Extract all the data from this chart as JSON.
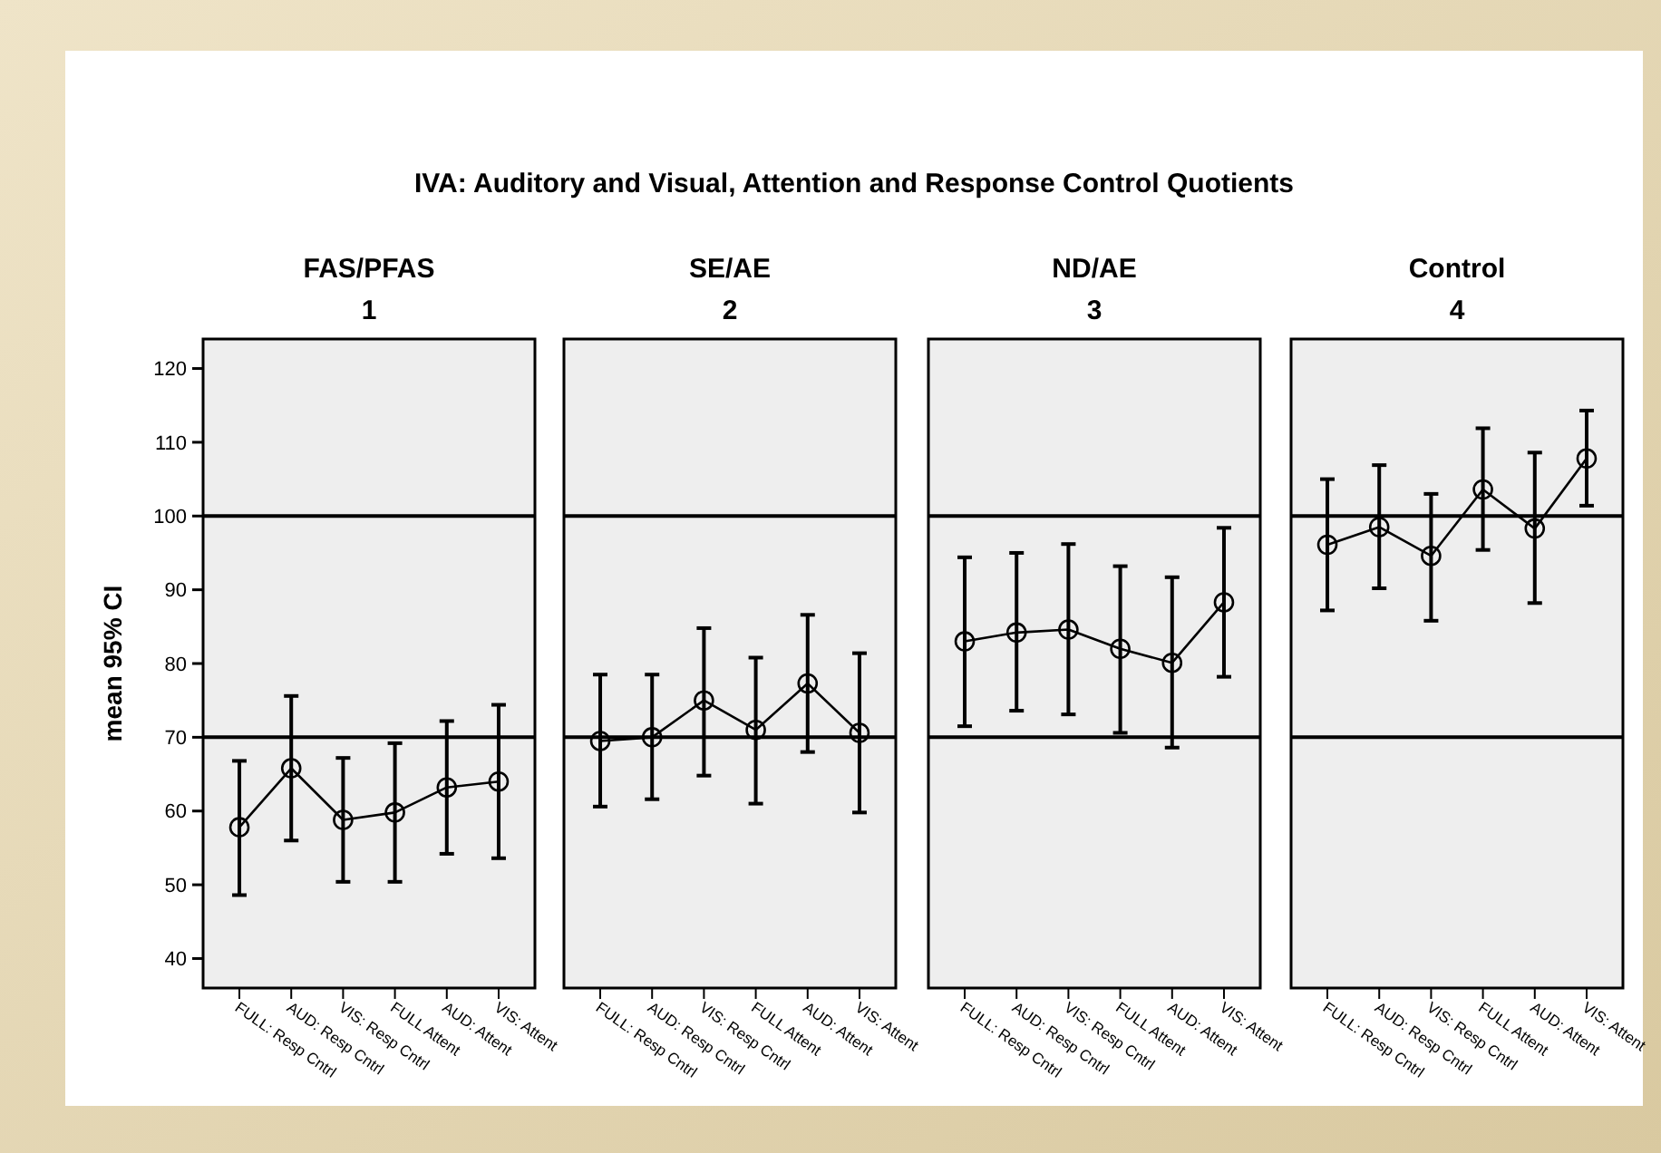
{
  "chart_data": [
    {
      "type": "line",
      "title": "FAS/PFAS",
      "subtitle": "1",
      "annotations": [
        "IVA: Auditory and Visual, Attention and Response Control Quotients"
      ],
      "ylabel": "mean 95% CI",
      "categories": [
        "FULL: Resp Cntrl",
        "AUD: Resp Cntrl",
        "VIS: Resp Cntrl",
        "FULL Attent",
        "AUD: Attent",
        "VIS: Attent"
      ],
      "series": [
        {
          "color": "#000000",
          "values": [
            57.8,
            65.8,
            58.8,
            59.8,
            63.2,
            64
          ],
          "errors": [
            [
              48.6,
              66.8
            ],
            [
              56,
              75.6
            ],
            [
              50.4,
              67.2
            ],
            [
              50.4,
              69.2
            ],
            [
              54.2,
              72.2
            ],
            [
              53.6,
              74.4
            ]
          ]
        }
      ],
      "ylim": [
        36,
        124
      ],
      "yticks": [
        40,
        50,
        60,
        70,
        80,
        90,
        100,
        110,
        120
      ],
      "ref_lines": [
        {
          "axis": "y",
          "value": 70,
          "color": "#000000"
        },
        {
          "axis": "y",
          "value": 100,
          "color": "#000000"
        }
      ],
      "marker": "circle",
      "grid": false
    },
    {
      "type": "line",
      "title": "SE/AE",
      "subtitle": "2",
      "categories": [
        "FULL: Resp Cntrl",
        "AUD: Resp Cntrl",
        "VIS: Resp Cntrl",
        "FULL Attent",
        "AUD: Attent",
        "VIS: Attent"
      ],
      "series": [
        {
          "color": "#000000",
          "values": [
            69.5,
            70,
            75,
            71,
            77.3,
            70.6
          ],
          "errors": [
            [
              60.6,
              78.5
            ],
            [
              61.6,
              78.5
            ],
            [
              64.8,
              84.8
            ],
            [
              61,
              80.8
            ],
            [
              68,
              86.6
            ],
            [
              59.8,
              81.4
            ]
          ]
        }
      ],
      "ylim": [
        36,
        124
      ],
      "tick_labels": "x",
      "ref_lines": [
        {
          "axis": "y",
          "value": 70,
          "color": "#000000"
        },
        {
          "axis": "y",
          "value": 100,
          "color": "#000000"
        }
      ],
      "marker": "circle",
      "grid": false
    },
    {
      "type": "line",
      "title": "ND/AE",
      "subtitle": "3",
      "categories": [
        "FULL: Resp Cntrl",
        "AUD: Resp Cntrl",
        "VIS: Resp Cntrl",
        "FULL Attent",
        "AUD: Attent",
        "VIS: Attent"
      ],
      "series": [
        {
          "color": "#000000",
          "values": [
            83,
            84.2,
            84.6,
            82,
            80.1,
            88.3
          ],
          "errors": [
            [
              71.5,
              94.4
            ],
            [
              73.6,
              95
            ],
            [
              73.1,
              96.2
            ],
            [
              70.6,
              93.2
            ],
            [
              68.6,
              91.7
            ],
            [
              78.2,
              98.4
            ]
          ]
        }
      ],
      "ylim": [
        36,
        124
      ],
      "tick_labels": "x",
      "ref_lines": [
        {
          "axis": "y",
          "value": 70,
          "color": "#000000"
        },
        {
          "axis": "y",
          "value": 100,
          "color": "#000000"
        }
      ],
      "marker": "circle",
      "grid": false
    },
    {
      "type": "line",
      "title": "Control",
      "subtitle": "4",
      "categories": [
        "FULL: Resp Cntrl",
        "AUD: Resp Cntrl",
        "VIS: Resp Cntrl",
        "FULL Attent",
        "AUD: Attent",
        "VIS: Attent"
      ],
      "series": [
        {
          "color": "#000000",
          "values": [
            96.1,
            98.5,
            94.6,
            103.6,
            98.3,
            107.8
          ],
          "errors": [
            [
              87.2,
              105
            ],
            [
              90.2,
              106.9
            ],
            [
              85.8,
              103
            ],
            [
              95.4,
              111.9
            ],
            [
              88.2,
              108.6
            ],
            [
              101.4,
              114.3
            ]
          ]
        }
      ],
      "ylim": [
        36,
        124
      ],
      "tick_labels": "x",
      "ref_lines": [
        {
          "axis": "y",
          "value": 70,
          "color": "#000000"
        },
        {
          "axis": "y",
          "value": 100,
          "color": "#000000"
        }
      ],
      "marker": "circle",
      "grid": false
    }
  ]
}
